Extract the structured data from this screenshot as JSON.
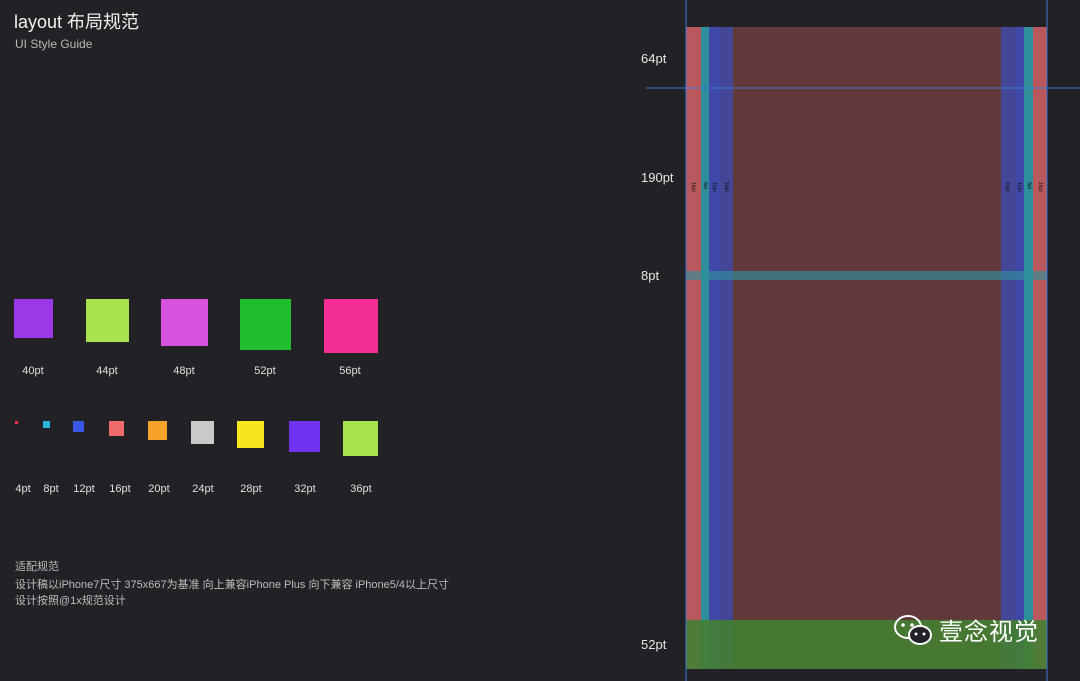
{
  "header": {
    "title": "layout 布局规范",
    "subtitle": "UI Style Guide"
  },
  "large_squares": [
    {
      "label": "40pt",
      "color": "#9b39e8"
    },
    {
      "label": "44pt",
      "color": "#a6e34c"
    },
    {
      "label": "48pt",
      "color": "#d853dd"
    },
    {
      "label": "52pt",
      "color": "#1fbe2c"
    },
    {
      "label": "56pt",
      "color": "#f42e93"
    }
  ],
  "small_squares": [
    {
      "label": "4pt",
      "color": "#f0304a"
    },
    {
      "label": "8pt",
      "color": "#29b6d9"
    },
    {
      "label": "12pt",
      "color": "#3a58e6"
    },
    {
      "label": "16pt",
      "color": "#f06b6b"
    },
    {
      "label": "20pt",
      "color": "#f6a12a"
    },
    {
      "label": "24pt",
      "color": "#c9c9c9"
    },
    {
      "label": "28pt",
      "color": "#f7e51f"
    },
    {
      "label": "32pt",
      "color": "#7133ef"
    },
    {
      "label": "36pt",
      "color": "#a6e34c"
    }
  ],
  "notes": {
    "heading": "适配规范",
    "line1": "设计稿以iPhone7尺寸 375x667为基准 向上兼容iPhone Plus 向下兼容 iPhone5/4以上尺寸",
    "line2": "设计按照@1x规范设计"
  },
  "diagram": {
    "labels": [
      "64pt",
      "190pt",
      "8pt",
      "52pt"
    ],
    "left_margins": [
      "16pt",
      "8pt",
      "12pt",
      "16pt"
    ],
    "right_margins": [
      "16pt",
      "12pt",
      "8pt",
      "16pt"
    ],
    "colors": {
      "outer": "#b9595d",
      "cyan": "#2f8f9a",
      "blue": "#3f4aa8",
      "body": "#62393a",
      "green": "#447f32",
      "guide": "#3b78d6"
    }
  },
  "watermark": {
    "text": "壹念视觉",
    "icon": "wechat-icon"
  }
}
